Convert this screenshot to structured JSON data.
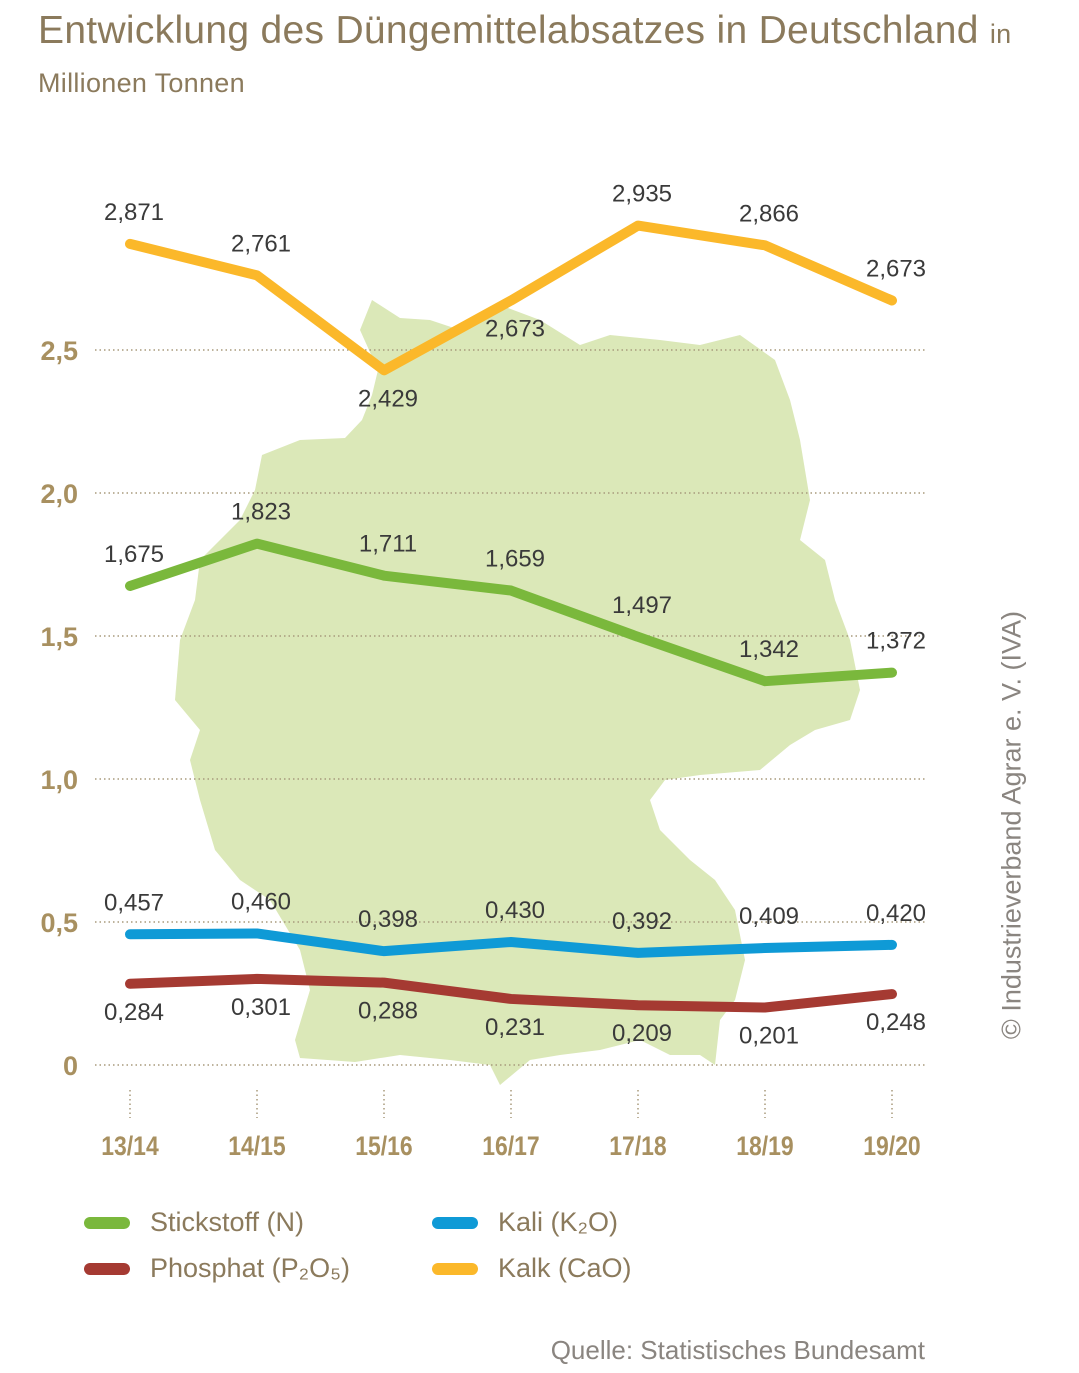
{
  "chart_data": {
    "type": "line",
    "title": "Entwicklung des Düngemittelabsatzes in Deutschland",
    "unit": "in Millionen Tonnen",
    "categories": [
      "13/14",
      "14/15",
      "15/16",
      "16/17",
      "17/18",
      "18/19",
      "19/20"
    ],
    "ylim": [
      0,
      3.0
    ],
    "yticks": [
      0,
      0.5,
      1.0,
      1.5,
      2.0,
      2.5
    ],
    "ytick_labels": [
      "0",
      "0,5",
      "1,0",
      "1,5",
      "2,0",
      "2,5"
    ],
    "grid": true,
    "legend_position": "bottom",
    "background_image": "germany-map",
    "series": [
      {
        "name": "Stickstoff (N)",
        "color": "#7ab83c",
        "values": [
          1.675,
          1.823,
          1.711,
          1.659,
          1.497,
          1.342,
          1.372
        ],
        "labels": [
          "1,675",
          "1,823",
          "1,711",
          "1,659",
          "1,497",
          "1,342",
          "1,372"
        ],
        "label_side": [
          "above",
          "above",
          "above",
          "above",
          "above",
          "above",
          "above"
        ]
      },
      {
        "name": "Phosphat (P₂O₅)",
        "color": "#a53a32",
        "values": [
          0.284,
          0.301,
          0.288,
          0.231,
          0.209,
          0.201,
          0.248
        ],
        "labels": [
          "0,284",
          "0,301",
          "0,288",
          "0,231",
          "0,209",
          "0,201",
          "0,248"
        ],
        "label_side": [
          "below",
          "below",
          "below",
          "below",
          "below",
          "below",
          "below"
        ]
      },
      {
        "name": "Kali (K₂O)",
        "color": "#0f9ad6",
        "values": [
          0.457,
          0.46,
          0.398,
          0.43,
          0.392,
          0.409,
          0.42
        ],
        "labels": [
          "0,457",
          "0,460",
          "0,398",
          "0,430",
          "0,392",
          "0,409",
          "0,420"
        ],
        "label_side": [
          "above",
          "above",
          "above",
          "above",
          "above",
          "above",
          "above"
        ]
      },
      {
        "name": "Kalk (CaO)",
        "color": "#fbb82a",
        "values": [
          2.871,
          2.761,
          2.429,
          2.673,
          2.935,
          2.866,
          2.673
        ],
        "labels": [
          "2,871",
          "2,761",
          "2,429",
          "2,673",
          "2,935",
          "2,866",
          "2,673"
        ],
        "label_side": [
          "above",
          "above",
          "below",
          "below",
          "above",
          "above",
          "above"
        ]
      }
    ]
  },
  "copyright": "© Industrieverband Agrar e. V. (IVA)",
  "source": "Quelle: Statistisches Bundesamt"
}
